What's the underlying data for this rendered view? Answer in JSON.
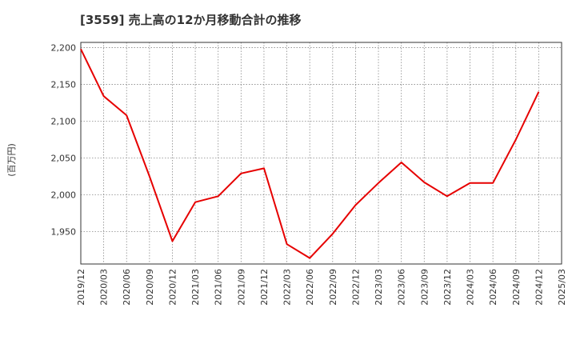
{
  "chart_data": {
    "type": "line",
    "title": "[3559]  売上高の12か月移動合計の推移",
    "xlabel": "",
    "ylabel": "(百万円)",
    "ylim": [
      1906,
      2207
    ],
    "yticks": [
      1950,
      2000,
      2050,
      2100,
      2150,
      2200
    ],
    "ytick_labels": [
      "1,950",
      "2,000",
      "2,050",
      "2,100",
      "2,150",
      "2,200"
    ],
    "x_tick_labels": [
      "2019/12",
      "2020/03",
      "2020/06",
      "2020/09",
      "2020/12",
      "2021/03",
      "2021/06",
      "2021/09",
      "2021/12",
      "2022/03",
      "2022/06",
      "2022/09",
      "2022/12",
      "2023/03",
      "2023/06",
      "2023/09",
      "2023/12",
      "2024/03",
      "2024/06",
      "2024/09",
      "2024/12",
      "2025/03"
    ],
    "grid": true,
    "series": [
      {
        "name": "売上高の12か月移動合計",
        "color": "#e60000",
        "x": [
          "2019/12",
          "2020/03",
          "2020/06",
          "2020/09",
          "2020/12",
          "2021/03",
          "2021/06",
          "2021/09",
          "2021/12",
          "2022/03",
          "2022/06",
          "2022/09",
          "2022/12",
          "2023/03",
          "2023/06",
          "2023/09",
          "2023/12",
          "2024/03",
          "2024/06",
          "2024/09",
          "2024/12"
        ],
        "values": [
          2198,
          2134,
          2108,
          2025,
          1937,
          1990,
          1998,
          2029,
          2036,
          1933,
          1914,
          1947,
          1986,
          2016,
          2044,
          2017,
          1998,
          2016,
          2016,
          2075,
          2140
        ]
      }
    ]
  }
}
